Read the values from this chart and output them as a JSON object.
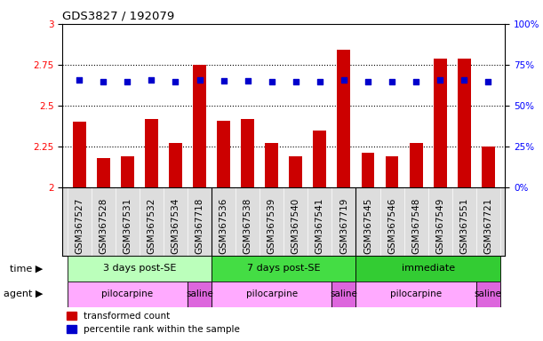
{
  "title": "GDS3827 / 192079",
  "samples": [
    "GSM367527",
    "GSM367528",
    "GSM367531",
    "GSM367532",
    "GSM367534",
    "GSM367718",
    "GSM367536",
    "GSM367538",
    "GSM367539",
    "GSM367540",
    "GSM367541",
    "GSM367719",
    "GSM367545",
    "GSM367546",
    "GSM367548",
    "GSM367549",
    "GSM367551",
    "GSM367721"
  ],
  "red_values": [
    2.4,
    2.18,
    2.19,
    2.42,
    2.27,
    2.75,
    2.41,
    2.42,
    2.27,
    2.19,
    2.35,
    2.84,
    2.21,
    2.19,
    2.27,
    2.79,
    2.79,
    2.25
  ],
  "blue_values": [
    65.5,
    64.5,
    64.5,
    65.5,
    64.5,
    65.5,
    65.0,
    65.0,
    64.5,
    64.5,
    64.8,
    65.5,
    64.8,
    64.8,
    64.8,
    65.5,
    65.5,
    64.8
  ],
  "ylim_left": [
    2.0,
    3.0
  ],
  "ylim_right": [
    0.0,
    100.0
  ],
  "yticks_left": [
    2.0,
    2.25,
    2.5,
    2.75,
    3.0
  ],
  "yticks_right": [
    0.0,
    25.0,
    50.0,
    75.0,
    100.0
  ],
  "ytick_labels_left": [
    "2",
    "2.25",
    "2.5",
    "2.75",
    "3"
  ],
  "ytick_labels_right": [
    "0%",
    "25%",
    "50%",
    "75%",
    "100%"
  ],
  "hlines": [
    2.25,
    2.5,
    2.75
  ],
  "bar_color": "#cc0000",
  "dot_color": "#0000cc",
  "groups": [
    {
      "label": "3 days post-SE",
      "start": 0,
      "end": 5,
      "color": "#bbffbb"
    },
    {
      "label": "7 days post-SE",
      "start": 6,
      "end": 11,
      "color": "#44dd44"
    },
    {
      "label": "immediate",
      "start": 12,
      "end": 17,
      "color": "#33cc33"
    }
  ],
  "agents": [
    {
      "label": "pilocarpine",
      "start": 0,
      "end": 4,
      "color": "#ffaaff"
    },
    {
      "label": "saline",
      "start": 5,
      "end": 5,
      "color": "#dd66dd"
    },
    {
      "label": "pilocarpine",
      "start": 6,
      "end": 10,
      "color": "#ffaaff"
    },
    {
      "label": "saline",
      "start": 11,
      "end": 11,
      "color": "#dd66dd"
    },
    {
      "label": "pilocarpine",
      "start": 12,
      "end": 16,
      "color": "#ffaaff"
    },
    {
      "label": "saline",
      "start": 17,
      "end": 17,
      "color": "#dd66dd"
    }
  ],
  "time_label": "time",
  "agent_label": "agent",
  "legend_red": "transformed count",
  "legend_blue": "percentile rank within the sample",
  "bar_width": 0.55,
  "xlim": [
    -0.7,
    17.7
  ],
  "label_fontsize": 7.5,
  "tick_fontsize": 7.5
}
